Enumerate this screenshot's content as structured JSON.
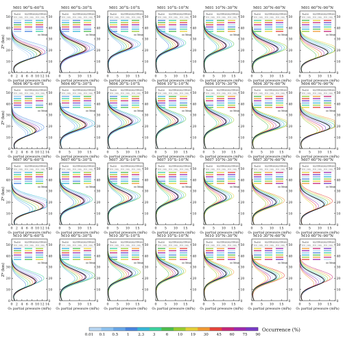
{
  "figure": {
    "months": [
      "M01",
      "M04",
      "M07",
      "M10"
    ],
    "bands": [
      "90°S–60°S",
      "60°S–30°S",
      "30°S–10°S",
      "10°S–10°N",
      "10°N–30°N",
      "30°N–60°N",
      "60°N–90°N"
    ],
    "ylabel": "Z* (km)",
    "y_ticks": [
      0,
      10,
      20,
      30,
      40,
      50
    ],
    "xlabel": "O₃ partial pressure (mPa)",
    "x_ticks_by_band": [
      [
        0,
        2,
        4,
        6,
        8,
        10,
        12,
        14
      ],
      [
        0,
        5,
        10,
        15
      ],
      [
        0,
        5,
        10,
        15
      ],
      [
        0,
        5,
        10,
        15
      ],
      [
        0,
        5,
        10,
        15
      ],
      [
        0,
        5,
        10,
        15
      ],
      [
        0,
        5,
        10,
        15
      ]
    ],
    "table_headers": [
      "TuO3",
      "N2TPOS",
      "N2TPOS"
    ],
    "table_units": [
      "DU / km",
      "DU / km",
      "DU / km"
    ],
    "legend_mean": "Mean",
    "colorbar": {
      "label": "Occurrence (%)",
      "ticks": [
        "0.01",
        "0.1",
        "0.5",
        "1",
        "2.3",
        "3",
        "6",
        "10",
        "19",
        "30",
        "45",
        "60",
        "75",
        "90"
      ],
      "colors": [
        "#b9d7f2",
        "#8fc3f0",
        "#6aa8e8",
        "#4a86e0",
        "#38b8d8",
        "#3ed3a0",
        "#4fbf4f",
        "#9acd32",
        "#e5d13a",
        "#f29b35",
        "#e8473c",
        "#c8287a",
        "#a02bb0",
        "#7a3cc8"
      ]
    }
  },
  "chart_data": {
    "type": "line",
    "layout": "4x7 small multiples (rows = months, columns = latitude bands)",
    "rows": [
      "M01",
      "M04",
      "M07",
      "M10"
    ],
    "columns": [
      "90°S–60°S",
      "60°S–30°S",
      "30°S–10°S",
      "10°S–10°N",
      "10°N–30°N",
      "30°N–60°N",
      "60°N–90°N"
    ],
    "xlabel": "O₃ partial pressure (mPa)",
    "ylabel": "Z* (km)",
    "ylim": [
      0,
      55
    ],
    "xlim_by_column": [
      [
        0,
        14
      ],
      [
        0,
        18
      ],
      [
        0,
        18
      ],
      [
        0,
        18
      ],
      [
        0,
        18
      ],
      [
        0,
        18
      ],
      [
        0,
        18
      ]
    ],
    "series_description": "ozone profiles per tropopause class, colored by occurrence; mean profile in black",
    "peak_altitude_km": [
      [
        17,
        21,
        24,
        25,
        24,
        21,
        18
      ],
      [
        16,
        21,
        24,
        25,
        24,
        21,
        19
      ],
      [
        16,
        21,
        24,
        25,
        24,
        20,
        18
      ],
      [
        17,
        21,
        24,
        25,
        24,
        21,
        18
      ]
    ],
    "peak_o3_mPa": [
      [
        12,
        14,
        13,
        12,
        12,
        14,
        15
      ],
      [
        10,
        14,
        13,
        12,
        12,
        15,
        16
      ],
      [
        13,
        13,
        13,
        12,
        12,
        13,
        13
      ],
      [
        10,
        14,
        13,
        12,
        12,
        13,
        13
      ]
    ],
    "grid": false,
    "legend": "top-left inset tables per panel"
  }
}
